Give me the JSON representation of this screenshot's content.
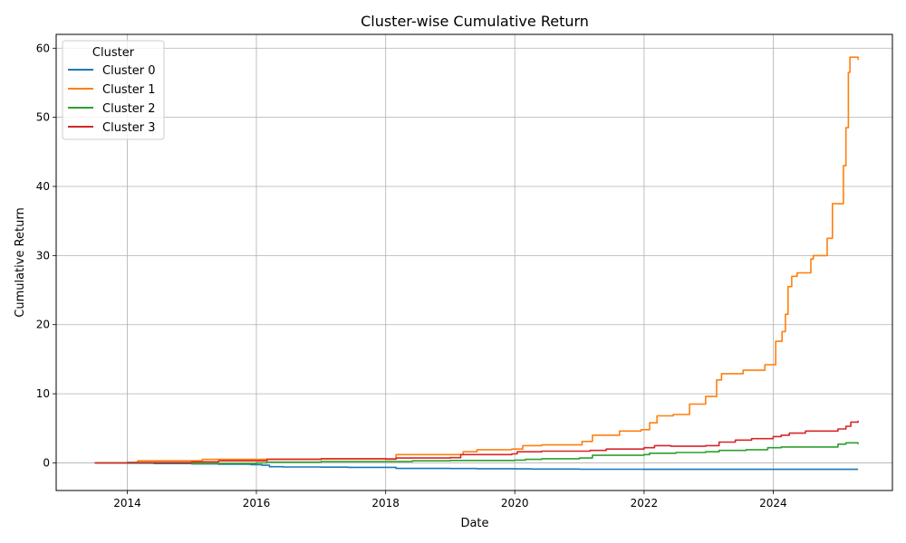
{
  "chart_data": {
    "type": "line",
    "title": "Cluster-wise Cumulative Return",
    "xlabel": "Date",
    "ylabel": "Cumulative Return",
    "x_range": [
      "2012-11-25",
      "2025-11-05"
    ],
    "ylim": [
      -4,
      62
    ],
    "x_ticks": [
      "2014-01-01",
      "2016-01-01",
      "2018-01-01",
      "2020-01-01",
      "2022-01-01",
      "2024-01-01"
    ],
    "x_tick_labels": [
      "2014",
      "2016",
      "2018",
      "2020",
      "2022",
      "2024"
    ],
    "y_ticks": [
      0,
      10,
      20,
      30,
      40,
      50,
      60
    ],
    "y_tick_labels": [
      "0",
      "10",
      "20",
      "30",
      "40",
      "50",
      "60"
    ],
    "grid": true,
    "legend": {
      "title": "Cluster",
      "placement": "top-left"
    },
    "series": [
      {
        "name": "Cluster 0",
        "color": "#1f77b4",
        "points": [
          [
            "2013-07-01",
            0.0
          ],
          [
            "2014-01-01",
            -0.05
          ],
          [
            "2014-06-01",
            -0.1
          ],
          [
            "2015-01-01",
            -0.15
          ],
          [
            "2015-06-01",
            -0.2
          ],
          [
            "2015-12-01",
            -0.25
          ],
          [
            "2016-02-01",
            -0.35
          ],
          [
            "2016-03-15",
            -0.55
          ],
          [
            "2016-06-01",
            -0.6
          ],
          [
            "2017-01-01",
            -0.62
          ],
          [
            "2017-06-01",
            -0.65
          ],
          [
            "2018-01-01",
            -0.65
          ],
          [
            "2018-03-01",
            -0.8
          ],
          [
            "2019-01-01",
            -0.82
          ],
          [
            "2019-06-01",
            -0.85
          ],
          [
            "2020-01-01",
            -0.87
          ],
          [
            "2020-04-01",
            -0.9
          ],
          [
            "2021-01-01",
            -0.92
          ],
          [
            "2022-01-01",
            -0.93
          ],
          [
            "2023-01-01",
            -0.93
          ],
          [
            "2024-01-01",
            -0.93
          ],
          [
            "2025-04-25",
            -0.93
          ]
        ]
      },
      {
        "name": "Cluster 1",
        "color": "#ff7f0e",
        "points": [
          [
            "2013-07-01",
            0.0
          ],
          [
            "2014-01-01",
            0.05
          ],
          [
            "2014-03-01",
            0.3
          ],
          [
            "2015-02-01",
            0.3
          ],
          [
            "2015-03-01",
            0.5
          ],
          [
            "2016-03-01",
            0.55
          ],
          [
            "2017-01-01",
            0.6
          ],
          [
            "2018-02-15",
            0.6
          ],
          [
            "2018-03-01",
            1.2
          ],
          [
            "2019-02-15",
            1.2
          ],
          [
            "2019-03-15",
            1.6
          ],
          [
            "2019-06-01",
            1.9
          ],
          [
            "2019-12-15",
            2.0
          ],
          [
            "2020-02-15",
            2.5
          ],
          [
            "2020-06-01",
            2.6
          ],
          [
            "2021-01-15",
            3.1
          ],
          [
            "2021-03-15",
            4.0
          ],
          [
            "2021-08-15",
            4.6
          ],
          [
            "2021-12-15",
            4.8
          ],
          [
            "2022-02-01",
            5.8
          ],
          [
            "2022-03-15",
            6.8
          ],
          [
            "2022-06-15",
            7.0
          ],
          [
            "2022-09-15",
            8.5
          ],
          [
            "2022-12-15",
            9.6
          ],
          [
            "2023-02-15",
            12.0
          ],
          [
            "2023-03-15",
            12.9
          ],
          [
            "2023-07-15",
            13.4
          ],
          [
            "2023-11-15",
            14.2
          ],
          [
            "2024-01-15",
            17.6
          ],
          [
            "2024-02-20",
            19.0
          ],
          [
            "2024-03-10",
            21.5
          ],
          [
            "2024-03-25",
            25.5
          ],
          [
            "2024-04-15",
            27.0
          ],
          [
            "2024-05-15",
            27.5
          ],
          [
            "2024-08-01",
            29.5
          ],
          [
            "2024-08-15",
            30.0
          ],
          [
            "2024-11-01",
            32.5
          ],
          [
            "2024-12-01",
            37.5
          ],
          [
            "2025-02-01",
            43.0
          ],
          [
            "2025-02-15",
            48.5
          ],
          [
            "2025-03-01",
            56.5
          ],
          [
            "2025-03-10",
            58.7
          ],
          [
            "2025-04-25",
            58.3
          ]
        ]
      },
      {
        "name": "Cluster 2",
        "color": "#2ca02c",
        "points": [
          [
            "2013-07-01",
            0.0
          ],
          [
            "2014-01-01",
            0.0
          ],
          [
            "2015-01-01",
            -0.1
          ],
          [
            "2015-03-01",
            -0.1
          ],
          [
            "2016-01-01",
            0.0
          ],
          [
            "2016-03-01",
            0.1
          ],
          [
            "2017-01-01",
            0.2
          ],
          [
            "2018-01-01",
            0.2
          ],
          [
            "2018-06-01",
            0.3
          ],
          [
            "2019-01-01",
            0.35
          ],
          [
            "2020-01-01",
            0.4
          ],
          [
            "2020-03-01",
            0.5
          ],
          [
            "2020-06-01",
            0.6
          ],
          [
            "2021-01-01",
            0.7
          ],
          [
            "2021-03-15",
            1.1
          ],
          [
            "2022-01-01",
            1.2
          ],
          [
            "2022-02-01",
            1.4
          ],
          [
            "2022-07-01",
            1.5
          ],
          [
            "2022-12-15",
            1.6
          ],
          [
            "2023-03-01",
            1.8
          ],
          [
            "2023-08-01",
            1.9
          ],
          [
            "2023-12-01",
            2.2
          ],
          [
            "2024-02-15",
            2.3
          ],
          [
            "2024-12-01",
            2.3
          ],
          [
            "2025-01-01",
            2.7
          ],
          [
            "2025-02-15",
            2.9
          ],
          [
            "2025-04-25",
            2.7
          ]
        ]
      },
      {
        "name": "Cluster 3",
        "color": "#d62728",
        "points": [
          [
            "2013-07-01",
            0.0
          ],
          [
            "2014-01-01",
            0.05
          ],
          [
            "2015-01-01",
            0.15
          ],
          [
            "2015-06-01",
            0.3
          ],
          [
            "2016-03-01",
            0.5
          ],
          [
            "2017-01-01",
            0.6
          ],
          [
            "2018-01-01",
            0.55
          ],
          [
            "2018-03-01",
            0.7
          ],
          [
            "2019-01-01",
            0.75
          ],
          [
            "2019-03-01",
            1.2
          ],
          [
            "2019-12-15",
            1.3
          ],
          [
            "2020-01-15",
            1.6
          ],
          [
            "2020-06-01",
            1.7
          ],
          [
            "2021-03-01",
            1.8
          ],
          [
            "2021-06-01",
            2.0
          ],
          [
            "2022-01-01",
            2.2
          ],
          [
            "2022-03-01",
            2.5
          ],
          [
            "2022-06-01",
            2.4
          ],
          [
            "2022-12-15",
            2.5
          ],
          [
            "2023-03-01",
            3.0
          ],
          [
            "2023-06-01",
            3.3
          ],
          [
            "2023-09-01",
            3.5
          ],
          [
            "2024-01-01",
            3.8
          ],
          [
            "2024-02-15",
            4.0
          ],
          [
            "2024-04-01",
            4.3
          ],
          [
            "2024-07-01",
            4.6
          ],
          [
            "2024-12-01",
            4.6
          ],
          [
            "2025-01-01",
            4.9
          ],
          [
            "2025-02-15",
            5.3
          ],
          [
            "2025-03-15",
            5.9
          ],
          [
            "2025-04-25",
            6.1
          ]
        ]
      }
    ]
  }
}
